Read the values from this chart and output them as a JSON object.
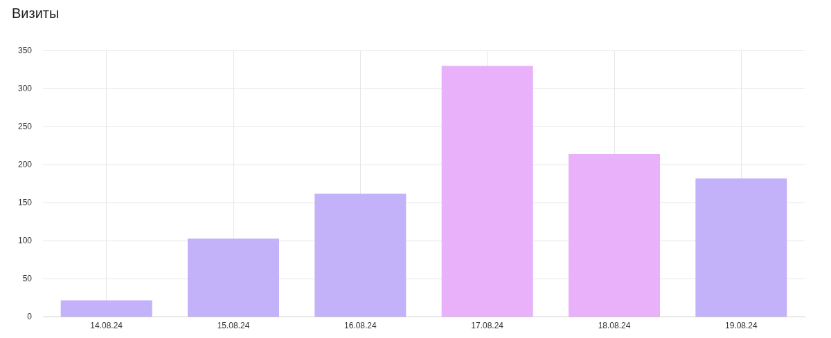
{
  "chart_data": {
    "type": "bar",
    "title": "Визиты",
    "categories": [
      "14.08.24",
      "15.08.24",
      "16.08.24",
      "17.08.24",
      "18.08.24",
      "19.08.24"
    ],
    "values": [
      22,
      103,
      162,
      330,
      214,
      182
    ],
    "colors": [
      "#c3b1fa",
      "#c3b1fa",
      "#c3b1fa",
      "#e8b1fa",
      "#e8b1fa",
      "#c3b1fa"
    ],
    "ylim": [
      0,
      350
    ],
    "yticks": [
      0,
      50,
      100,
      150,
      200,
      250,
      300,
      350
    ],
    "grid": true,
    "legend": false
  }
}
